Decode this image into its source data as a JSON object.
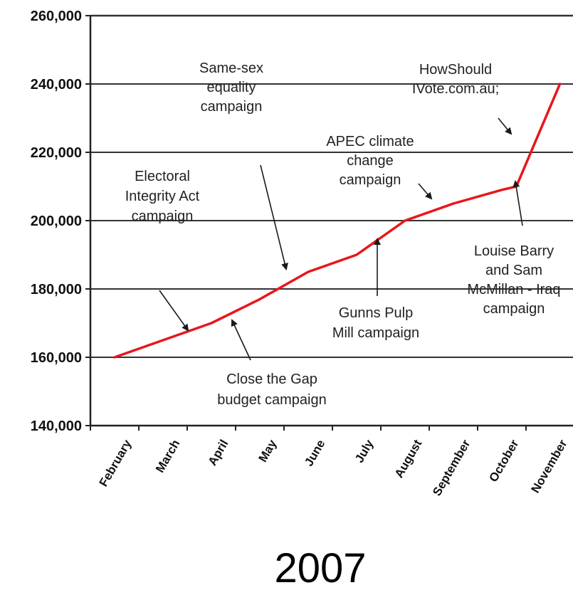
{
  "chart_data": {
    "type": "line",
    "title": "",
    "xlabel": "2007",
    "ylabel": "",
    "ylim": [
      140000,
      260000
    ],
    "yticks": [
      140000,
      160000,
      180000,
      200000,
      220000,
      240000,
      260000
    ],
    "ytick_labels": [
      "140,000",
      "160,000",
      "180,000",
      "200,000",
      "220,000",
      "240,000",
      "260,000"
    ],
    "categories": [
      "February",
      "March",
      "April",
      "May",
      "June",
      "July",
      "August",
      "September",
      "October",
      "November"
    ],
    "grid": "horizontal",
    "legend": "none",
    "series": [
      {
        "color": "#e8161b",
        "points": [
          {
            "x": 0.0,
            "y": 160000
          },
          {
            "x": 1.0,
            "y": 165000
          },
          {
            "x": 2.0,
            "y": 170000
          },
          {
            "x": 3.0,
            "y": 177000
          },
          {
            "x": 4.0,
            "y": 185000
          },
          {
            "x": 5.0,
            "y": 190000
          },
          {
            "x": 6.0,
            "y": 200000
          },
          {
            "x": 7.0,
            "y": 205000
          },
          {
            "x": 8.0,
            "y": 209000
          },
          {
            "x": 8.3,
            "y": 210000
          },
          {
            "x": 9.2,
            "y": 240000
          }
        ]
      }
    ],
    "annotations": [
      {
        "id": "same-sex",
        "lines": [
          "Same-sex",
          "equality",
          "campaign"
        ]
      },
      {
        "id": "howshould",
        "lines": [
          "HowShould",
          "IVote.com.au;"
        ]
      },
      {
        "id": "apec",
        "lines": [
          "APEC climate",
          "change",
          "campaign"
        ]
      },
      {
        "id": "electoral",
        "lines": [
          "Electoral",
          "Integrity Act",
          "campaign"
        ]
      },
      {
        "id": "louise",
        "lines": [
          "Louise Barry",
          "and Sam",
          "McMillan - Iraq",
          "campaign"
        ]
      },
      {
        "id": "gunns",
        "lines": [
          "Gunns Pulp",
          "Mill campaign"
        ]
      },
      {
        "id": "closegap",
        "lines": [
          "Close the Gap",
          "budget campaign"
        ]
      }
    ]
  }
}
